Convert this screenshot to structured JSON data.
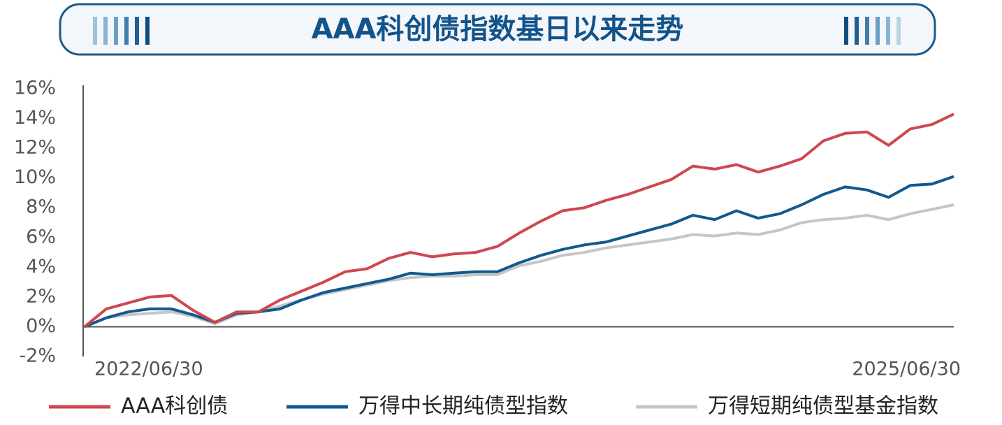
{
  "chart_data": {
    "type": "line",
    "title": "AAA科创债指数基日以来走势",
    "categories": [
      "2022/06/30",
      null,
      null,
      null,
      null,
      null,
      null,
      null,
      null,
      null,
      null,
      null,
      null,
      null,
      null,
      null,
      null,
      null,
      null,
      null,
      null,
      null,
      null,
      null,
      null,
      null,
      null,
      null,
      null,
      null,
      null,
      null,
      null,
      null,
      null,
      null,
      null,
      null,
      null,
      null,
      "2025/06/30"
    ],
    "series": [
      {
        "name": "AAA科创债",
        "color": "#d0474f",
        "values": [
          0,
          1.2,
          1.6,
          2.0,
          2.1,
          1.1,
          0.3,
          1.0,
          1.0,
          1.8,
          2.4,
          3.0,
          3.7,
          3.9,
          4.6,
          5.0,
          4.7,
          4.9,
          5.0,
          5.4,
          6.3,
          7.1,
          7.8,
          8.0,
          8.5,
          8.9,
          9.4,
          9.9,
          10.8,
          10.6,
          10.9,
          10.4,
          10.8,
          11.3,
          12.5,
          13.0,
          13.1,
          12.2,
          13.3,
          13.6,
          14.3
        ]
      },
      {
        "name": "万得中长期纯债型指数",
        "color": "#0f5a8e",
        "values": [
          0,
          0.6,
          1.0,
          1.2,
          1.2,
          0.8,
          0.3,
          0.9,
          1.0,
          1.2,
          1.8,
          2.3,
          2.6,
          2.9,
          3.2,
          3.6,
          3.5,
          3.6,
          3.7,
          3.7,
          4.3,
          4.8,
          5.2,
          5.5,
          5.7,
          6.1,
          6.5,
          6.9,
          7.5,
          7.2,
          7.8,
          7.3,
          7.6,
          8.2,
          8.9,
          9.4,
          9.2,
          8.7,
          9.5,
          9.6,
          10.1
        ]
      },
      {
        "name": "万得短期纯债型基金指数",
        "color": "#c6c6c6",
        "values": [
          0,
          0.6,
          0.8,
          0.9,
          1.0,
          0.7,
          0.2,
          0.8,
          1.0,
          1.4,
          1.8,
          2.2,
          2.5,
          2.8,
          3.1,
          3.3,
          3.4,
          3.4,
          3.5,
          3.5,
          4.1,
          4.4,
          4.8,
          5.0,
          5.3,
          5.5,
          5.7,
          5.9,
          6.2,
          6.1,
          6.3,
          6.2,
          6.5,
          7.0,
          7.2,
          7.3,
          7.5,
          7.2,
          7.6,
          7.9,
          8.2
        ]
      }
    ],
    "ylim": [
      -2,
      16
    ],
    "yticks": [
      {
        "value": -2,
        "label": "-2%"
      },
      {
        "value": 0,
        "label": "0%"
      },
      {
        "value": 2,
        "label": "2%"
      },
      {
        "value": 4,
        "label": "4%"
      },
      {
        "value": 6,
        "label": "6%"
      },
      {
        "value": 8,
        "label": "8%"
      },
      {
        "value": 10,
        "label": "10%"
      },
      {
        "value": 12,
        "label": "12%"
      },
      {
        "value": 14,
        "label": "14%"
      },
      {
        "value": 16,
        "label": "16%"
      }
    ],
    "grid": false,
    "legend": "bottom"
  }
}
